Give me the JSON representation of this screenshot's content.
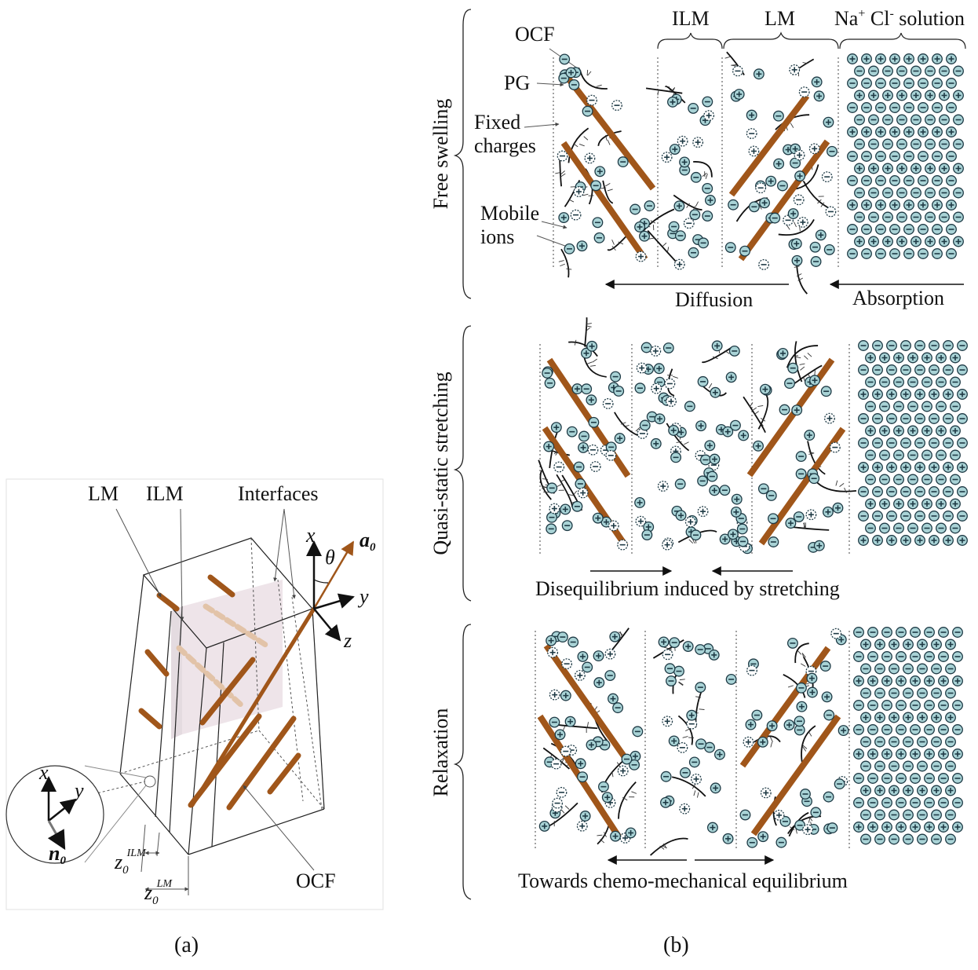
{
  "panel_a": {
    "caption": "(a)",
    "labels": {
      "lm": "LM",
      "ilm": "ILM",
      "interfaces": "Interfaces",
      "ocf": "OCF"
    },
    "axes": {
      "x": "x",
      "y": "y",
      "z": "z",
      "theta": "θ",
      "a0": "a",
      "a0_sub": "0"
    },
    "inset": {
      "x": "x",
      "y": "y",
      "n0": "n",
      "n0_sub": "0"
    },
    "z_ilm": {
      "base": "z",
      "sub": "0",
      "sup": "ILM"
    },
    "z_lm": {
      "base": "z",
      "sub": "0",
      "sup": "LM"
    }
  },
  "panel_b": {
    "caption": "(b)",
    "top_labels": {
      "ocf": "OCF",
      "pg": "PG",
      "fixed_1": "Fixed",
      "fixed_2": "charges",
      "mobile_1": "Mobile",
      "mobile_2": "ions",
      "ilm": "ILM",
      "lm": "LM",
      "solution_na": "Na",
      "solution_plus": "+",
      "solution_cl": " Cl",
      "solution_minus": "-",
      "solution_rest": " solution"
    },
    "rows": [
      {
        "title": "Free swelling",
        "arrows": [
          "Diffusion",
          "Absorption"
        ]
      },
      {
        "title": "Quasi-static stretching",
        "arrows": [
          "Disequilibrium induced by stretching"
        ]
      },
      {
        "title": "Relaxation",
        "arrows": [
          "Towards chemo-mechanical equilibrium"
        ]
      }
    ]
  },
  "colors": {
    "fiber": "#a0561a",
    "ion_fill": "#a9d3d6",
    "ion_stroke": "#1e3a45",
    "line": "#111111",
    "gel": "#e9e1e5"
  }
}
